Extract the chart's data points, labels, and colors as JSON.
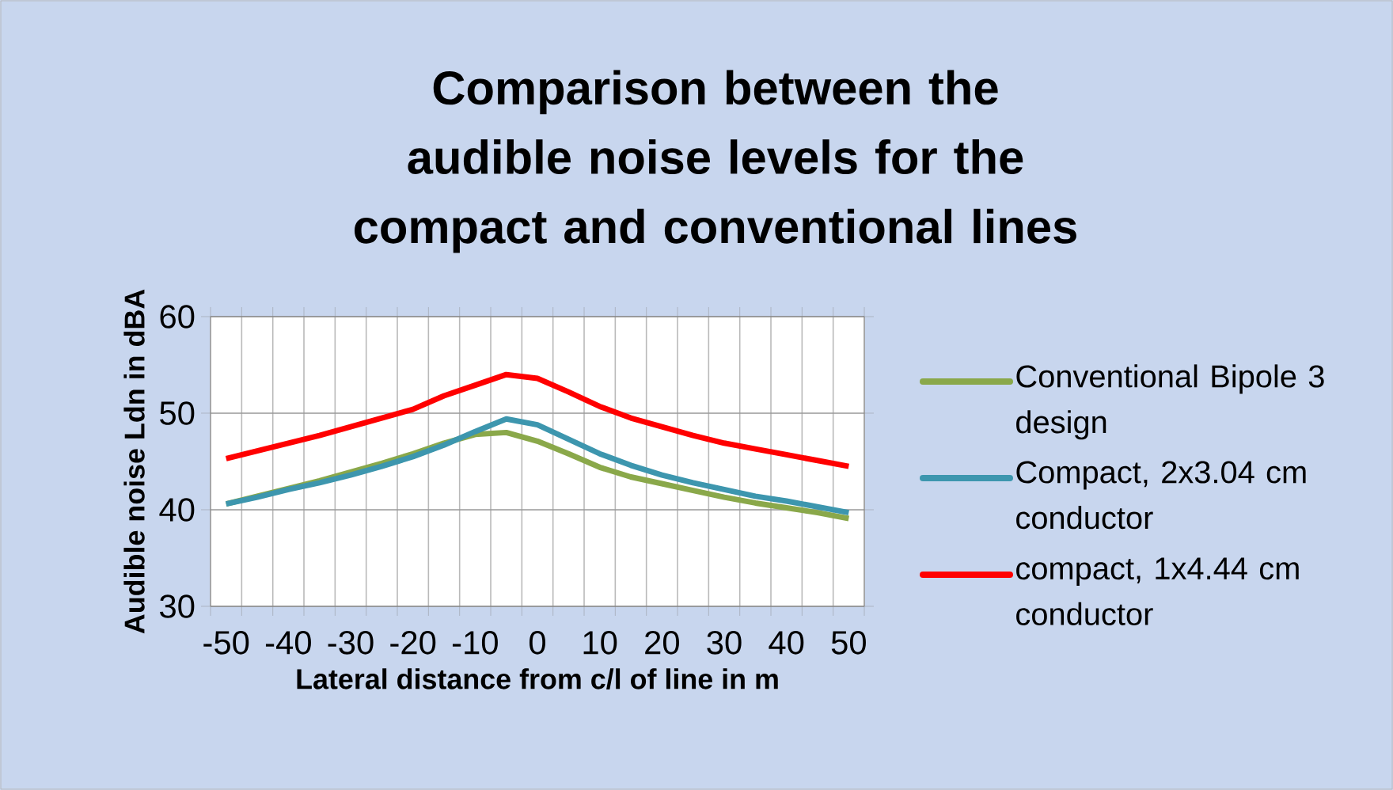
{
  "chart_data": {
    "type": "line",
    "title": "Comparison between the audible noise levels for the compact and conventional lines",
    "xlabel": "Lateral distance from c/l of line in m",
    "ylabel": "Audible noise Ldn in dBA",
    "categories": [
      "-50",
      null,
      "-40",
      null,
      "-30",
      null,
      "-20",
      null,
      "-10",
      null,
      "0",
      null,
      "10",
      null,
      "20",
      null,
      "30",
      null,
      "40",
      null,
      "50"
    ],
    "series": [
      {
        "name": "Conventional Bipole 3 design",
        "color": "#8aa84a",
        "values": [
          40.6,
          41.4,
          42.2,
          43.0,
          43.9,
          44.8,
          45.8,
          46.9,
          47.8,
          48.0,
          47.1,
          45.8,
          44.4,
          43.4,
          42.7,
          42.0,
          41.3,
          40.7,
          40.2,
          39.7,
          39.1
        ]
      },
      {
        "name": "Compact, 2x3.04 cm conductor",
        "color": "#3d96ae",
        "values": [
          40.6,
          41.3,
          42.1,
          42.8,
          43.6,
          44.5,
          45.5,
          46.7,
          48.1,
          49.4,
          48.8,
          47.3,
          45.8,
          44.6,
          43.6,
          42.8,
          42.1,
          41.4,
          40.9,
          40.3,
          39.7
        ]
      },
      {
        "name": "compact, 1x4.44 cm conductor",
        "color": "#ff0000",
        "values": [
          45.3,
          46.1,
          46.9,
          47.7,
          48.6,
          49.5,
          50.4,
          51.8,
          52.9,
          54.0,
          53.6,
          52.2,
          50.7,
          49.5,
          48.6,
          47.7,
          46.9,
          46.3,
          45.7,
          45.1,
          44.5
        ]
      }
    ],
    "ylim": [
      30,
      60
    ],
    "yticks": [
      30,
      40,
      50,
      60
    ],
    "grid": true,
    "legend": "right",
    "marker": "none",
    "line_style": "solid"
  }
}
